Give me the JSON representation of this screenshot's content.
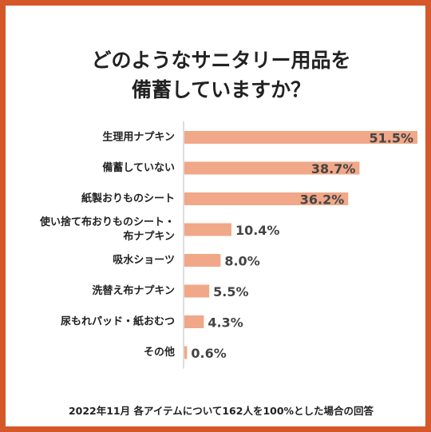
{
  "header": {
    "title_line1": "どのようなサニタリー用品を",
    "title_line2": "備蓄していますか？"
  },
  "footnote": "2022年11月 各アイテムについて162人を100%とした場合の回答",
  "colors": {
    "frame": "#d4582a",
    "bar": "#f0a888",
    "axis": "#bbbbbb"
  },
  "chart_data": {
    "type": "bar",
    "orientation": "horizontal",
    "title": "どのようなサニタリー用品を備蓄していますか？",
    "xlabel": "",
    "ylabel": "",
    "unit": "%",
    "categories": [
      [
        "生理用ナプキン"
      ],
      [
        "備蓄していない"
      ],
      [
        "紙製おりものシート"
      ],
      [
        "使い捨て布おりものシート・",
        "布ナプキン"
      ],
      [
        "吸水ショーツ"
      ],
      [
        "洗替え布ナプキン"
      ],
      [
        "尿もれパッド・紙おむつ"
      ],
      [
        "その他"
      ]
    ],
    "values": [
      51.5,
      38.7,
      36.2,
      10.4,
      8.0,
      5.5,
      4.3,
      0.6
    ],
    "value_labels": [
      "51.5%",
      "38.7%",
      "36.2%",
      "10.4%",
      "8.0%",
      "5.5%",
      "4.3%",
      "0.6%"
    ],
    "xlim": [
      0,
      51.5
    ],
    "grid": false,
    "legend": "none"
  }
}
